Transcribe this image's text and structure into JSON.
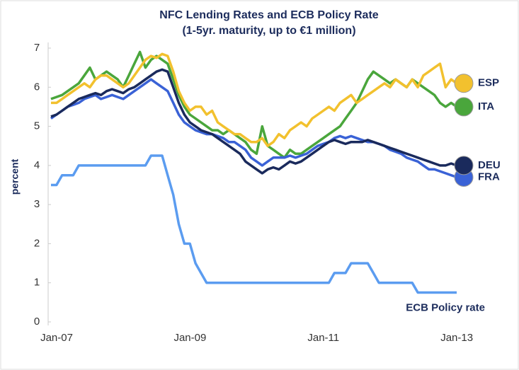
{
  "chart_data": {
    "type": "line",
    "title": "NFC Lending Rates and ECB Policy Rate",
    "subtitle": "(1-5yr. maturity, up to €1 million)",
    "y_label": "percent",
    "categories": [
      "Jan-07",
      null,
      null,
      null,
      null,
      null,
      null,
      null,
      null,
      null,
      null,
      null,
      null,
      null,
      null,
      null,
      null,
      null,
      null,
      null,
      null,
      null,
      null,
      null,
      "Jan-09",
      null,
      null,
      null,
      null,
      null,
      null,
      null,
      null,
      null,
      null,
      null,
      null,
      null,
      null,
      null,
      null,
      null,
      null,
      null,
      null,
      null,
      null,
      null,
      "Jan-11",
      null,
      null,
      null,
      null,
      null,
      null,
      null,
      null,
      null,
      null,
      null,
      null,
      null,
      null,
      null,
      null,
      null,
      null,
      null,
      null,
      null,
      null,
      null,
      "Jan-13",
      null
    ],
    "ylim": [
      0,
      7
    ],
    "yticks": [
      0,
      1,
      2,
      3,
      4,
      5,
      6,
      7
    ],
    "grid": false,
    "series": [
      {
        "name": "ECB Policy rate",
        "color": "#5b9cf0",
        "values": [
          3.5,
          3.5,
          3.75,
          3.75,
          3.75,
          4,
          4,
          4,
          4,
          4,
          4,
          4,
          4,
          4,
          4,
          4,
          4,
          4,
          4.25,
          4.25,
          4.25,
          3.75,
          3.25,
          2.5,
          2,
          2,
          1.5,
          1.25,
          1,
          1,
          1,
          1,
          1,
          1,
          1,
          1,
          1,
          1,
          1,
          1,
          1,
          1,
          1,
          1,
          1,
          1,
          1,
          1,
          1,
          1,
          1,
          1.25,
          1.25,
          1.25,
          1.5,
          1.5,
          1.5,
          1.5,
          1.25,
          1,
          1,
          1,
          1,
          1,
          1,
          1,
          0.75,
          0.75,
          0.75,
          0.75,
          0.75,
          0.75,
          0.75,
          0.75
        ]
      },
      {
        "name": "ITA",
        "color": "#4aa63c",
        "values": [
          5.7,
          5.75,
          5.8,
          5.9,
          6,
          6.1,
          6.3,
          6.5,
          6.2,
          6.3,
          6.4,
          6.3,
          6.2,
          6,
          6.3,
          6.6,
          6.9,
          6.5,
          6.7,
          6.8,
          6.7,
          6.6,
          6.2,
          5.8,
          5.5,
          5.3,
          5.2,
          5.1,
          5,
          4.9,
          4.9,
          4.8,
          4.9,
          4.8,
          4.7,
          4.6,
          4.4,
          4.3,
          5,
          4.5,
          4.4,
          4.3,
          4.2,
          4.4,
          4.3,
          4.3,
          4.4,
          4.5,
          4.6,
          4.7,
          4.8,
          4.9,
          5,
          5.2,
          5.4,
          5.6,
          5.9,
          6.2,
          6.4,
          6.3,
          6.2,
          6.1,
          6.2,
          6.1,
          6,
          6.2,
          6.1,
          6,
          5.9,
          5.8,
          5.6,
          5.5,
          5.6,
          5.5
        ]
      },
      {
        "name": "ESP",
        "color": "#f2c12e",
        "values": [
          5.6,
          5.6,
          5.7,
          5.8,
          5.9,
          6,
          6.1,
          6,
          6.2,
          6.3,
          6.3,
          6.2,
          6.1,
          6,
          6.1,
          6.3,
          6.5,
          6.7,
          6.8,
          6.75,
          6.85,
          6.8,
          6.4,
          5.9,
          5.6,
          5.4,
          5.5,
          5.5,
          5.3,
          5.4,
          5.1,
          5,
          4.9,
          4.8,
          4.8,
          4.7,
          4.6,
          4.6,
          4.7,
          4.5,
          4.6,
          4.8,
          4.7,
          4.9,
          5,
          5.1,
          5,
          5.2,
          5.3,
          5.4,
          5.5,
          5.4,
          5.6,
          5.7,
          5.8,
          5.6,
          5.7,
          5.8,
          5.9,
          6,
          6.1,
          6,
          6.2,
          6.1,
          6,
          6.2,
          6,
          6.3,
          6.4,
          6.5,
          6.6,
          6,
          6.2,
          6.1
        ]
      },
      {
        "name": "FRA",
        "color": "#3a62d6",
        "values": [
          5.2,
          5.3,
          5.4,
          5.5,
          5.55,
          5.6,
          5.7,
          5.75,
          5.8,
          5.7,
          5.75,
          5.8,
          5.75,
          5.7,
          5.8,
          5.9,
          6,
          6.1,
          6.2,
          6.1,
          6,
          5.9,
          5.6,
          5.3,
          5.1,
          5,
          4.9,
          4.85,
          4.8,
          4.8,
          4.75,
          4.7,
          4.6,
          4.6,
          4.5,
          4.4,
          4.2,
          4.1,
          4,
          4.1,
          4.2,
          4.2,
          4.2,
          4.25,
          4.2,
          4.25,
          4.3,
          4.4,
          4.5,
          4.55,
          4.6,
          4.7,
          4.75,
          4.7,
          4.75,
          4.7,
          4.65,
          4.6,
          4.6,
          4.55,
          4.5,
          4.4,
          4.35,
          4.3,
          4.2,
          4.15,
          4.1,
          4,
          3.9,
          3.9,
          3.85,
          3.8,
          3.75,
          3.7
        ]
      },
      {
        "name": "DEU",
        "color": "#1a2a5c",
        "values": [
          5.25,
          5.3,
          5.4,
          5.5,
          5.6,
          5.7,
          5.75,
          5.8,
          5.85,
          5.8,
          5.9,
          5.95,
          5.9,
          5.85,
          5.95,
          6,
          6.1,
          6.2,
          6.3,
          6.4,
          6.45,
          6.4,
          6,
          5.6,
          5.3,
          5.1,
          5,
          4.9,
          4.85,
          4.8,
          4.7,
          4.6,
          4.5,
          4.4,
          4.3,
          4.1,
          4,
          3.9,
          3.8,
          3.9,
          3.95,
          3.9,
          4,
          4.1,
          4.05,
          4.1,
          4.2,
          4.3,
          4.4,
          4.5,
          4.6,
          4.65,
          4.6,
          4.55,
          4.6,
          4.6,
          4.6,
          4.65,
          4.6,
          4.55,
          4.5,
          4.45,
          4.4,
          4.35,
          4.3,
          4.25,
          4.2,
          4.15,
          4.1,
          4.05,
          4,
          4,
          4.05,
          4
        ]
      }
    ]
  }
}
